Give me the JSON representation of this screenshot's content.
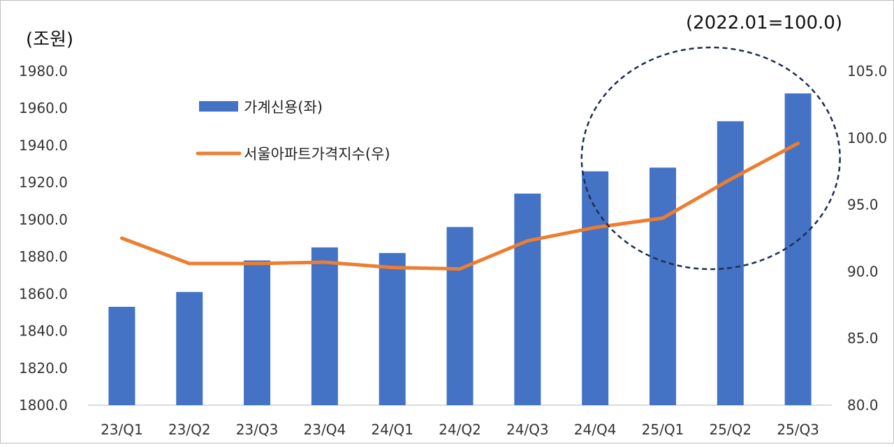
{
  "chart_data": {
    "type": "bar",
    "categories": [
      "23/Q1",
      "23/Q2",
      "23/Q3",
      "23/Q4",
      "24/Q1",
      "24/Q2",
      "24/Q3",
      "24/Q4",
      "25/Q1",
      "25/Q2",
      "25/Q3"
    ],
    "left_unit": "(조원)",
    "right_unit": "(2022.01=100.0)",
    "left_axis": {
      "min": 1800,
      "max": 1980,
      "step": 20,
      "tick_labels": [
        "1800.0",
        "1820.0",
        "1840.0",
        "1860.0",
        "1880.0",
        "1900.0",
        "1920.0",
        "1940.0",
        "1960.0",
        "1980.0"
      ]
    },
    "right_axis": {
      "min": 80,
      "max": 105,
      "step": 5,
      "tick_labels": [
        "80.0",
        "85.0",
        "90.0",
        "95.0",
        "100.0",
        "105.0"
      ]
    },
    "series": [
      {
        "name": "가계신용(좌)",
        "type": "bar",
        "axis": "left",
        "color": "#4472c4",
        "values": [
          1853,
          1861,
          1878,
          1885,
          1882,
          1896,
          1914,
          1926,
          1928,
          1953,
          1968
        ]
      },
      {
        "name": "서울아파트가격지수(우)",
        "type": "line",
        "axis": "right",
        "color": "#ed7d31",
        "values": [
          92.5,
          90.6,
          90.6,
          90.7,
          90.3,
          90.2,
          92.3,
          93.3,
          94.0,
          96.9,
          99.6
        ]
      }
    ],
    "legend_position": "top-left",
    "grid": false,
    "annotation": {
      "shape": "dashed-ellipse",
      "highlights": [
        "24/Q4",
        "25/Q1",
        "25/Q2",
        "25/Q3"
      ],
      "color": "#1f2d4e"
    }
  }
}
